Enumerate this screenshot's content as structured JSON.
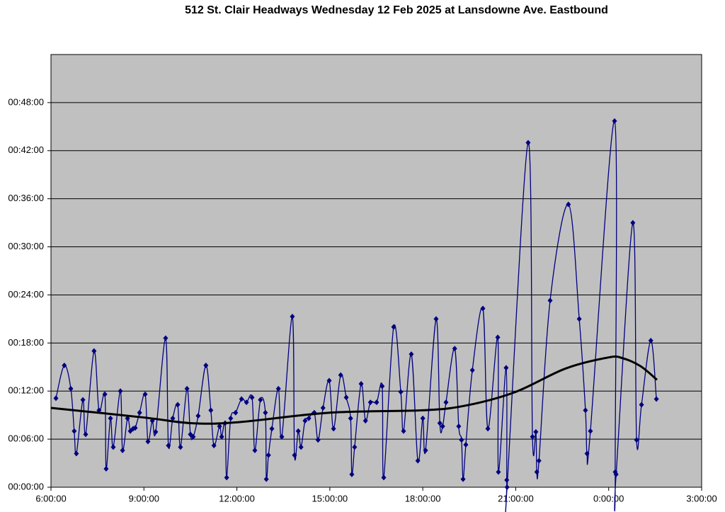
{
  "chart_data": {
    "type": "line",
    "title": "512 St. Clair Headways Wednesday 12 Feb 2025 at Lansdowne Ave. Eastbound",
    "xlim": [
      6,
      27
    ],
    "ylim": [
      0,
      54
    ],
    "grid": true,
    "xticks": [
      {
        "value": 6,
        "label": "6:00:00"
      },
      {
        "value": 9,
        "label": "9:00:00"
      },
      {
        "value": 12,
        "label": "12:00:00"
      },
      {
        "value": 15,
        "label": "15:00:00"
      },
      {
        "value": 18,
        "label": "18:00:00"
      },
      {
        "value": 21,
        "label": "21:00:00"
      },
      {
        "value": 24,
        "label": "0:00:00"
      },
      {
        "value": 27,
        "label": "3:00:00"
      }
    ],
    "yticks": [
      {
        "value": 0,
        "label": "00:00:00"
      },
      {
        "value": 6,
        "label": "00:06:00"
      },
      {
        "value": 12,
        "label": "00:12:00"
      },
      {
        "value": 18,
        "label": "00:18:00"
      },
      {
        "value": 24,
        "label": "00:24:00"
      },
      {
        "value": 30,
        "label": "00:30:00"
      },
      {
        "value": 36,
        "label": "00:36:00"
      },
      {
        "value": 42,
        "label": "00:42:00"
      },
      {
        "value": 48,
        "label": "00:48:00"
      }
    ],
    "series": [
      {
        "color": "#000080",
        "markers": true,
        "smooth": true,
        "x": [
          6.16,
          6.43,
          6.64,
          6.75,
          6.82,
          7.03,
          7.12,
          7.39,
          7.55,
          7.74,
          7.78,
          7.92,
          8.01,
          8.24,
          8.31,
          8.47,
          8.56,
          8.65,
          8.72,
          8.86,
          9.04,
          9.13,
          9.27,
          9.38,
          9.7,
          9.79,
          9.93,
          10.09,
          10.18,
          10.39,
          10.5,
          10.59,
          10.75,
          11.0,
          11.16,
          11.26,
          11.44,
          11.51,
          11.62,
          11.67,
          11.8,
          11.96,
          12.15,
          12.31,
          12.49,
          12.58,
          12.76,
          12.92,
          12.95,
          13.02,
          13.13,
          13.34,
          13.45,
          13.79,
          13.86,
          13.98,
          14.07,
          14.2,
          14.32,
          14.5,
          14.62,
          14.78,
          14.98,
          15.12,
          15.35,
          15.53,
          15.67,
          15.71,
          15.8,
          16.01,
          16.15,
          16.31,
          16.51,
          16.69,
          16.74,
          17.06,
          17.29,
          17.38,
          17.63,
          17.84,
          18.0,
          18.09,
          18.43,
          18.55,
          18.64,
          18.75,
          19.03,
          19.16,
          19.25,
          19.3,
          19.39,
          19.6,
          19.94,
          20.1,
          20.42,
          20.44,
          20.69,
          20.71,
          20.72,
          21.4,
          21.54,
          21.65,
          21.68,
          21.75,
          22.11,
          22.7,
          23.05,
          23.25,
          23.3,
          23.41,
          24.19,
          24.21,
          24.24,
          24.78,
          24.9,
          25.06,
          25.36,
          25.54
        ],
        "values": [
          11.1,
          15.2,
          12.3,
          7.0,
          4.2,
          10.9,
          6.6,
          17.0,
          9.6,
          11.6,
          2.3,
          8.6,
          5.0,
          12.0,
          4.6,
          8.6,
          7.0,
          7.3,
          7.4,
          9.3,
          11.6,
          5.7,
          8.3,
          6.9,
          18.6,
          5.2,
          8.6,
          10.3,
          5.0,
          12.3,
          6.6,
          6.3,
          8.9,
          15.2,
          9.6,
          5.2,
          7.6,
          6.3,
          8.0,
          1.2,
          8.6,
          9.3,
          11.0,
          10.6,
          11.2,
          4.6,
          10.9,
          9.3,
          1.0,
          4.0,
          7.3,
          12.3,
          6.3,
          21.3,
          4.0,
          7.0,
          5.0,
          8.3,
          8.6,
          9.3,
          5.9,
          9.9,
          13.3,
          7.3,
          14.0,
          11.2,
          8.6,
          1.6,
          5.0,
          12.9,
          8.3,
          10.6,
          10.6,
          12.6,
          1.2,
          20.0,
          11.9,
          7.0,
          16.6,
          3.3,
          8.6,
          4.6,
          21.0,
          8.0,
          7.6,
          10.6,
          17.3,
          7.6,
          5.9,
          1.0,
          5.3,
          14.6,
          22.3,
          7.3,
          18.7,
          1.9,
          14.9,
          0.9,
          0.0,
          43.0,
          6.3,
          6.9,
          1.9,
          3.3,
          23.3,
          35.3,
          21.0,
          9.6,
          4.2,
          7.0,
          45.7,
          1.9,
          1.6,
          33.0,
          5.9,
          10.3,
          18.3,
          11.0
        ]
      },
      {
        "color": "#000000",
        "markers": false,
        "smooth": true,
        "x": [
          6,
          9,
          10.5,
          12,
          15,
          18,
          19.4,
          21,
          22.6,
          24,
          24.45,
          25.03,
          25.56
        ],
        "values": [
          9.9,
          8.7,
          8.0,
          8.1,
          9.3,
          9.6,
          10.2,
          11.9,
          14.8,
          16.2,
          16.1,
          15.1,
          13.4
        ]
      }
    ]
  }
}
